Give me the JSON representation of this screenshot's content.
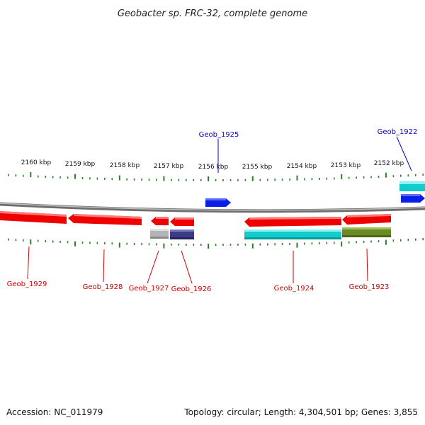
{
  "title": "Geobacter sp. FRC-32, complete genome",
  "footer": {
    "accession": "Accession: NC_011979",
    "summary": "Topology: circular; Length: 4,304,501 bp; Genes: 3,855"
  },
  "scale": {
    "labels": [
      "2160 kbp",
      "2159 kbp",
      "2158 kbp",
      "2157 kbp",
      "2156 kbp",
      "2155 kbp",
      "2154 kbp",
      "2153 kbp",
      "2152 kbp"
    ]
  },
  "colors": {
    "tick": "#2e7d2e",
    "backbone": "#8c8c8c",
    "label_top": "#0000cc",
    "label_bottom": "#cc0000",
    "gene_red": "#ee0000",
    "gene_blue": "#0a1fe6",
    "gene_cyan": "#11cccc",
    "gene_grey": "#b4b4b4",
    "gene_navy": "#3c3a84",
    "gene_olive": "#6b8a22"
  },
  "genes": {
    "geob_1922": "Geob_1922",
    "geob_1923": "Geob_1923",
    "geob_1924": "Geob_1924",
    "geob_1925": "Geob_1925",
    "geob_1926": "Geob_1926",
    "geob_1927": "Geob_1927",
    "geob_1928": "Geob_1928",
    "geob_1929": "Geob_1929"
  }
}
